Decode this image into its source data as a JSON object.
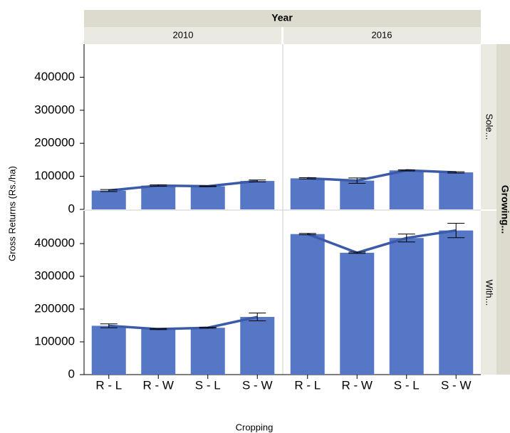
{
  "chart_data": {
    "type": "bar",
    "column_title": "Year",
    "columns": [
      "2010",
      "2016"
    ],
    "row_title": "Growing...",
    "rows": [
      "Sole...",
      "With..."
    ],
    "ylabel": "Gross Returns (Rs./ha)",
    "xlabel": "Cropping",
    "categories": [
      "R - L",
      "R - W",
      "S - L",
      "S - W"
    ],
    "ylim": [
      0,
      500000
    ],
    "yticks": [
      0,
      100000,
      200000,
      300000,
      400000
    ],
    "color": "#5677c6",
    "line_color": "#3b5ba9",
    "panels": [
      {
        "column": 0,
        "row": 0,
        "values": [
          57000,
          72000,
          70000,
          86000
        ],
        "errors": [
          3000,
          2000,
          1000,
          3000
        ]
      },
      {
        "column": 1,
        "row": 0,
        "values": [
          94000,
          87000,
          118000,
          112000
        ],
        "errors": [
          2000,
          8000,
          1500,
          2000
        ]
      },
      {
        "column": 0,
        "row": 1,
        "values": [
          149000,
          139000,
          143000,
          176000
        ],
        "errors": [
          6000,
          1500,
          1500,
          12000
        ]
      },
      {
        "column": 1,
        "row": 1,
        "values": [
          429000,
          372000,
          417000,
          440000
        ],
        "errors": [
          2000,
          2000,
          12000,
          22000
        ]
      }
    ]
  }
}
